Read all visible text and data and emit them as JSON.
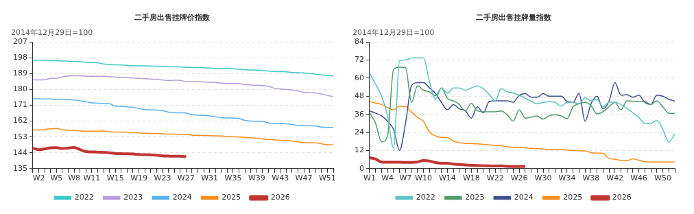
{
  "chart_data": [
    {
      "type": "line",
      "title": "二手房出售挂牌价指数",
      "ylabel": "2014年12月29日=100",
      "categories": [
        null,
        "W2",
        null,
        null,
        "W5",
        null,
        null,
        "W8",
        null,
        null,
        "W11",
        null,
        null,
        null,
        "W15",
        null,
        null,
        null,
        "W19",
        null,
        null,
        null,
        "W23",
        null,
        null,
        null,
        "W27",
        null,
        null,
        null,
        "W31",
        null,
        null,
        null,
        "W35",
        null,
        null,
        null,
        "W39",
        null,
        null,
        null,
        "W43",
        null,
        null,
        null,
        "W47",
        null,
        null,
        null,
        "W51",
        null
      ],
      "series": [
        {
          "name": "2022",
          "color": "#3cc8c8",
          "values": [
            196.5,
            196.6,
            196.6,
            196.4,
            196.3,
            196.2,
            196.1,
            196.0,
            195.8,
            195.5,
            195.3,
            195.2,
            194.5,
            194.1,
            194.0,
            193.9,
            193.7,
            193.4,
            193.4,
            193.4,
            193.3,
            193.2,
            193.0,
            192.9,
            192.8,
            192.8,
            192.6,
            192.5,
            192.5,
            192.4,
            192.2,
            192.0,
            191.9,
            191.9,
            191.8,
            191.5,
            191.2,
            191.1,
            191.0,
            190.8,
            190.4,
            190.2,
            190.1,
            190.0,
            189.6,
            189.5,
            189.4,
            189.2,
            188.7,
            188.3,
            188.0,
            187.6
          ]
        },
        {
          "name": "2023",
          "color": "#b39ddb",
          "values": [
            185.5,
            185.4,
            185.5,
            186.3,
            186.4,
            187.1,
            187.7,
            187.9,
            187.8,
            187.6,
            187.5,
            187.5,
            187.5,
            187.3,
            187.0,
            186.9,
            186.7,
            186.5,
            186.3,
            186.1,
            185.9,
            185.7,
            185.4,
            185.1,
            185.2,
            185.2,
            184.4,
            184.5,
            184.4,
            184.3,
            184.1,
            183.9,
            183.6,
            183.5,
            183.4,
            183.3,
            182.8,
            182.5,
            182.3,
            182.2,
            181.8,
            180.7,
            180.3,
            180.0,
            179.7,
            179.2,
            178.4,
            178.2,
            178.0,
            177.4,
            176.6,
            176.0
          ]
        },
        {
          "name": "2024",
          "color": "#5ab1ef",
          "values": [
            174.7,
            174.7,
            174.6,
            174.6,
            174.4,
            174.3,
            174.2,
            174.0,
            173.5,
            173.0,
            172.4,
            172.2,
            172.0,
            171.9,
            170.5,
            170.4,
            170.1,
            169.8,
            169.2,
            168.6,
            168.4,
            168.3,
            168.1,
            167.1,
            166.9,
            166.7,
            166.6,
            165.6,
            165.4,
            165.2,
            165.0,
            164.5,
            164.0,
            163.8,
            163.7,
            163.5,
            162.4,
            162.0,
            161.9,
            161.8,
            161.0,
            160.7,
            160.6,
            160.5,
            160.1,
            159.5,
            159.4,
            159.4,
            159.2,
            158.6,
            158.4,
            158.5
          ]
        },
        {
          "name": "2025",
          "color": "#ff8c1a",
          "values": [
            157.0,
            157.0,
            157.3,
            157.6,
            157.8,
            157.1,
            156.9,
            156.7,
            156.5,
            156.3,
            156.3,
            156.3,
            156.4,
            155.9,
            155.8,
            155.7,
            155.7,
            155.6,
            155.3,
            155.1,
            155.0,
            154.9,
            154.8,
            154.6,
            154.6,
            154.5,
            154.5,
            154.0,
            153.9,
            153.8,
            153.7,
            153.6,
            153.5,
            153.3,
            153.1,
            153.0,
            152.8,
            152.5,
            152.3,
            151.9,
            151.6,
            151.4,
            151.1,
            150.9,
            150.6,
            150.2,
            149.8,
            149.6,
            149.6,
            149.1,
            148.7,
            148.5
          ]
        },
        {
          "name": "2026",
          "color": "#c23531",
          "values": [
            146.7,
            145.7,
            146.2,
            146.8,
            146.9,
            146.4,
            146.7,
            147.0,
            145.8,
            144.7,
            144.5,
            144.4,
            144.2,
            144.0,
            143.6,
            143.5,
            143.4,
            143.3,
            143.0,
            142.9,
            142.8,
            142.6,
            142.2,
            142.1,
            142.0,
            142.0,
            141.8,
            null,
            null,
            null,
            null,
            null,
            null,
            null,
            null,
            null,
            null,
            null,
            null,
            null,
            null,
            null,
            null,
            null,
            null,
            null,
            null,
            null,
            null,
            null,
            null,
            null
          ]
        }
      ],
      "ylim": [
        135,
        207
      ],
      "yticks": [
        135,
        144,
        153,
        162,
        171,
        180,
        189,
        198,
        207
      ],
      "grid": "y",
      "legend": "bottom",
      "marker": "none"
    },
    {
      "type": "line",
      "title": "二手房出售挂牌量指数",
      "ylabel": "2014年12月29日=100",
      "categories": [
        "W1",
        null,
        null,
        "W4",
        null,
        null,
        "W7",
        null,
        null,
        "W10",
        null,
        null,
        null,
        "W14",
        null,
        null,
        null,
        "W18",
        null,
        null,
        null,
        "W22",
        null,
        null,
        null,
        "W26",
        null,
        null,
        null,
        "W30",
        null,
        null,
        null,
        "W34",
        null,
        null,
        null,
        "W38",
        null,
        null,
        null,
        "W42",
        null,
        null,
        null,
        "W46",
        null,
        null,
        null,
        "W50",
        null,
        null
      ],
      "series": [
        {
          "name": "2022",
          "color": "#5cc3c3",
          "values": [
            63.2,
            56,
            48,
            35,
            13.5,
            71.4,
            72,
            73.4,
            73.4,
            73.4,
            57.7,
            46,
            53.5,
            50,
            53.5,
            53.5,
            52,
            53.5,
            55,
            53,
            49,
            45,
            53,
            51,
            50,
            48.7,
            46.6,
            44.6,
            43,
            43.9,
            44.4,
            43.9,
            41.4,
            43.9,
            43.9,
            43,
            47,
            45,
            46,
            41,
            44,
            44,
            42.5,
            40,
            37,
            34,
            30,
            30,
            32,
            26,
            17.7,
            23
          ]
        },
        {
          "name": "2023",
          "color": "#4e9a6a",
          "values": [
            37,
            30,
            17.7,
            21.8,
            66,
            67.3,
            67,
            43.9,
            55,
            52,
            51,
            48.3,
            53.5,
            46.6,
            45,
            42.5,
            38.3,
            43.2,
            38.3,
            37.7,
            37.7,
            37.7,
            38.3,
            35.6,
            31.5,
            39,
            33.5,
            34.2,
            35,
            32.8,
            35,
            35.6,
            35,
            33.1,
            41,
            43,
            43.9,
            41.8,
            36.3,
            37.7,
            41,
            43.9,
            39,
            45,
            44.6,
            44.6,
            44.6,
            42.5,
            45,
            41,
            36.7,
            36.6
          ]
        },
        {
          "name": "2024",
          "color": "#3f4f8f",
          "values": [
            38.3,
            36.7,
            35,
            31.4,
            26,
            12.1,
            30,
            55,
            57,
            57,
            53.5,
            50,
            43.9,
            39,
            42.5,
            39.7,
            38.3,
            33.5,
            41,
            37,
            44.6,
            45,
            45,
            45,
            44,
            48.7,
            49.7,
            47.3,
            47.3,
            49.7,
            48,
            48,
            48,
            44.6,
            43.9,
            50,
            31.4,
            43,
            48,
            39.7,
            44.6,
            57,
            48.7,
            49,
            47.3,
            48.7,
            43.9,
            42.5,
            48.7,
            48,
            46,
            44.8
          ]
        },
        {
          "name": "2025",
          "color": "#ff8c1a",
          "values": [
            44.4,
            43.5,
            42.5,
            40.5,
            39,
            41.4,
            41.2,
            37.5,
            34,
            31.3,
            24.4,
            21.7,
            20.7,
            20.6,
            18.2,
            17.2,
            16.8,
            16.6,
            16.4,
            16.1,
            15.7,
            15.4,
            15.2,
            14.5,
            14.1,
            13.9,
            13.8,
            13.4,
            13.2,
            13.0,
            12.8,
            12.7,
            12.6,
            12.3,
            12.0,
            11.9,
            11.7,
            10.6,
            10.3,
            10.2,
            6.8,
            6.2,
            5.5,
            5.2,
            6.5,
            5.5,
            4.7,
            4.4,
            4.4,
            4.4,
            4.3,
            4.3
          ]
        },
        {
          "name": "2026",
          "color": "#c23531",
          "values": [
            7.2,
            6.3,
            4.3,
            4.2,
            4.2,
            4.2,
            4.1,
            4.1,
            4.3,
            5.4,
            5.0,
            4.0,
            3.5,
            3.6,
            3.0,
            2.7,
            2.4,
            2.2,
            2.1,
            1.9,
            1.8,
            1.7,
            1.8,
            1.5,
            1.4,
            1.4,
            1.4,
            null,
            null,
            null,
            null,
            null,
            null,
            null,
            null,
            null,
            null,
            null,
            null,
            null,
            null,
            null,
            null,
            null,
            null,
            null,
            null,
            null,
            null,
            null,
            null,
            null
          ]
        }
      ],
      "ylim": [
        0,
        84
      ],
      "yticks": [
        0,
        12,
        24,
        36,
        48,
        60,
        72,
        84
      ],
      "grid": "y",
      "legend": "bottom",
      "marker": "none"
    }
  ]
}
